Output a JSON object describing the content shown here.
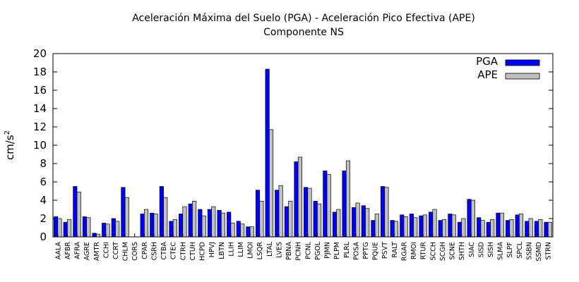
{
  "chart_data": {
    "type": "bar",
    "title": "Aceleración Máxima del Suelo (PGA) -   Aceleración Pico Efectiva (APE)",
    "subtitle": "Componente NS",
    "ylabel": "cm/s",
    "ylabel_sup": "2",
    "xlabel": "",
    "ylim": [
      0,
      20
    ],
    "yticks": [
      0,
      2,
      4,
      6,
      8,
      10,
      12,
      14,
      16,
      18,
      20
    ],
    "grid": false,
    "legend_position": "top-right",
    "categories": [
      "AALA",
      "AFBR",
      "AFRA",
      "AGRE",
      "AMTR",
      "CCHI",
      "CCRT",
      "CHLM",
      "CORS",
      "CPAR",
      "CSRH",
      "CTBA",
      "CTEC",
      "CTRH",
      "CTUH",
      "HCPD",
      "HPVJ",
      "LBTN",
      "LLIH",
      "LLIM",
      "LMOI",
      "LSQR",
      "LTAL",
      "LVES",
      "PBNA",
      "PCNH",
      "PCNL",
      "PGOL",
      "PJMN",
      "PLPM",
      "PLRL",
      "POSA",
      "PPTG",
      "PQUE",
      "PSVT",
      "RALT",
      "RGAR",
      "RMOI",
      "RTUR",
      "SCCH",
      "SCGH",
      "SCNE",
      "SHTH",
      "SIAC",
      "SISD",
      "SISH",
      "SLMA",
      "SLPF",
      "SPCL",
      "SSBN",
      "SSMD",
      "STRN"
    ],
    "series": [
      {
        "name": "PGA",
        "color": "#0000ff",
        "values": [
          2.2,
          1.6,
          5.5,
          2.2,
          0.4,
          1.5,
          2.0,
          5.4,
          0,
          2.5,
          2.6,
          5.5,
          1.7,
          2.5,
          3.6,
          3.0,
          3.0,
          2.9,
          2.7,
          1.7,
          1.1,
          5.1,
          18.3,
          5.1,
          3.3,
          8.2,
          5.4,
          3.9,
          7.2,
          2.7,
          7.2,
          3.2,
          3.4,
          1.8,
          5.5,
          1.8,
          2.4,
          2.5,
          2.3,
          2.7,
          1.8,
          2.5,
          1.6,
          4.1,
          2.1,
          1.6,
          2.6,
          1.8,
          2.4,
          1.7,
          1.7,
          1.6
        ]
      },
      {
        "name": "APE",
        "color": "#c0c0c0",
        "values": [
          2.0,
          1.9,
          4.9,
          2.1,
          0.3,
          1.4,
          1.7,
          4.3,
          0,
          3.0,
          2.5,
          4.3,
          1.9,
          3.3,
          3.9,
          2.3,
          3.3,
          2.6,
          1.5,
          1.4,
          1.1,
          3.9,
          11.7,
          5.6,
          3.9,
          8.7,
          5.3,
          3.6,
          6.8,
          3.0,
          8.3,
          3.7,
          3.1,
          2.5,
          5.4,
          1.7,
          2.2,
          2.1,
          2.4,
          3.0,
          1.9,
          2.4,
          2.0,
          4.0,
          1.8,
          1.9,
          2.6,
          1.9,
          2.5,
          2.0,
          1.9,
          1.6
        ]
      }
    ]
  }
}
